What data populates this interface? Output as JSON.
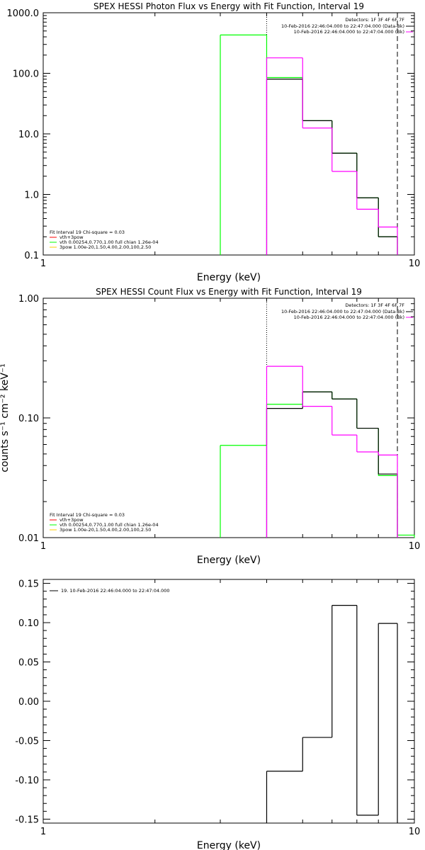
{
  "chart_data": [
    {
      "type": "line",
      "style": "step",
      "title": "SPEX HESSI Photon Flux vs Energy with Fit Function, Interval 19",
      "xlabel": "Energy (keV)",
      "ylabel": "",
      "xscale": "log",
      "yscale": "log",
      "xlim": [
        1,
        10
      ],
      "ylim": [
        0.1,
        1000
      ],
      "x_ticks": [
        "1",
        "10"
      ],
      "y_ticks": [
        "0.1",
        "1.0",
        "10.0",
        "100.0",
        "1000.0"
      ],
      "bin_edges": [
        4,
        5,
        6,
        7,
        8,
        9
      ],
      "series": [
        {
          "name": "",
          "color": "#00ff00",
          "bins": [
            [
              3.0,
              4.0,
              430
            ],
            [
              4.0,
              5.0,
              85
            ],
            [
              5.0,
              6.0,
              16.5
            ],
            [
              6.0,
              7.0,
              4.8
            ],
            [
              7.0,
              8.0,
              0.88
            ],
            [
              8.0,
              9.0,
              0.2
            ]
          ]
        },
        {
          "name": "",
          "color": "#000000",
          "bins": [
            [
              4.0,
              5.0,
              80
            ],
            [
              5.0,
              6.0,
              16.5
            ],
            [
              6.0,
              7.0,
              4.8
            ],
            [
              7.0,
              8.0,
              0.88
            ],
            [
              8.0,
              9.0,
              0.2
            ]
          ]
        },
        {
          "name": "",
          "color": "#ff00ff",
          "bins": [
            [
              4.0,
              5.0,
              180
            ],
            [
              5.0,
              6.0,
              12.5
            ],
            [
              6.0,
              7.0,
              2.4
            ],
            [
              7.0,
              8.0,
              0.57
            ],
            [
              8.0,
              9.0,
              0.29
            ]
          ]
        }
      ],
      "vlines": [
        {
          "x": 4.0,
          "style": "dotted",
          "color": "#000000"
        },
        {
          "x": 9.0,
          "style": "dashed",
          "color": "#000000"
        }
      ],
      "legend_right": {
        "header": "Detectors: 1F 3F 4F 6F 7F",
        "items": [
          {
            "text": "10-Feb-2016 22:46:04.000 to 22:47:04.000 (Data-Bk)",
            "color": "#000000"
          },
          {
            "text": "10-Feb-2016 22:46:04.000 to 22:47:04.000 (Bk)",
            "color": "#ff00ff"
          }
        ]
      },
      "legend_left": {
        "header": "Fit Interval 19    Chi-square = 0.03",
        "items": [
          {
            "text": "vth+3pow",
            "color": "#ff0000"
          },
          {
            "text": "vth 0.00254,0.770,1.00  full chian 1.26e-04",
            "color": "#00ff00"
          },
          {
            "text": "3pow 1.00e-20,1.50,4.00,2.00,100,2.50",
            "color": "#ffcc00"
          }
        ]
      }
    },
    {
      "type": "line",
      "style": "step",
      "title": "SPEX HESSI Count Flux vs Energy with Fit Function, Interval 19",
      "xlabel": "Energy (keV)",
      "ylabel": "counts s⁻¹ cm⁻² keV⁻¹",
      "xscale": "log",
      "yscale": "log",
      "xlim": [
        1,
        10
      ],
      "ylim": [
        0.01,
        1
      ],
      "x_ticks": [
        "1",
        "10"
      ],
      "y_ticks": [
        "0.01",
        "0.10",
        "1.00"
      ],
      "series": [
        {
          "name": "",
          "color": "#00ff00",
          "bins": [
            [
              3.0,
              4.0,
              0.059
            ],
            [
              4.0,
              5.0,
              0.13
            ],
            [
              5.0,
              6.0,
              0.165
            ],
            [
              6.0,
              7.0,
              0.144
            ],
            [
              7.0,
              8.0,
              0.082
            ],
            [
              8.0,
              9.0,
              0.033
            ],
            [
              9.0,
              10.0,
              0.0105
            ]
          ]
        },
        {
          "name": "",
          "color": "#000000",
          "bins": [
            [
              4.0,
              5.0,
              0.12
            ],
            [
              5.0,
              6.0,
              0.165
            ],
            [
              6.0,
              7.0,
              0.144
            ],
            [
              7.0,
              8.0,
              0.082
            ],
            [
              8.0,
              9.0,
              0.034
            ]
          ]
        },
        {
          "name": "",
          "color": "#ff00ff",
          "bins": [
            [
              4.0,
              5.0,
              0.27
            ],
            [
              5.0,
              6.0,
              0.125
            ],
            [
              6.0,
              7.0,
              0.072
            ],
            [
              7.0,
              8.0,
              0.052
            ],
            [
              8.0,
              9.0,
              0.049
            ]
          ]
        }
      ],
      "vlines": [
        {
          "x": 4.0,
          "style": "dotted",
          "color": "#000000"
        },
        {
          "x": 9.0,
          "style": "dashed",
          "color": "#000000"
        }
      ],
      "legend_right": {
        "header": "Detectors: 1F 3F 4F 6F 7F",
        "items": [
          {
            "text": "10-Feb-2016 22:46:04.000 to 22:47:04.000 (Data-Bk)",
            "color": "#000000"
          },
          {
            "text": "10-Feb-2016 22:46:04.000 to 22:47:04.000 (Bk)",
            "color": "#ff00ff"
          }
        ]
      },
      "legend_left": {
        "header": "Fit Interval 19    Chi-square = 0.03",
        "items": [
          {
            "text": "vth+3pow",
            "color": "#ff0000"
          },
          {
            "text": "vth 0.00254,0.770,1.00  full chian 1.26e-04",
            "color": "#00ff00"
          },
          {
            "text": "3pow 1.00e-20,1.50,4.00,2.00,100,2.50",
            "color": "#ffcc00"
          }
        ]
      }
    },
    {
      "type": "line",
      "style": "step",
      "title": "",
      "xlabel": "Energy (keV)",
      "ylabel": "",
      "xscale": "log",
      "yscale": "linear",
      "xlim": [
        1,
        10
      ],
      "ylim": [
        -0.155,
        0.155
      ],
      "x_ticks": [
        "1",
        "10"
      ],
      "y_ticks": [
        "-0.15",
        "-0.10",
        "-0.05",
        "0.00",
        "0.05",
        "0.10",
        "0.15"
      ],
      "series": [
        {
          "name": "",
          "color": "#000000",
          "bins": [
            [
              4.0,
              5.0,
              -0.089
            ],
            [
              5.0,
              6.0,
              -0.046
            ],
            [
              6.0,
              7.0,
              0.122
            ],
            [
              7.0,
              8.0,
              -0.145
            ],
            [
              8.0,
              9.0,
              0.099
            ]
          ]
        }
      ],
      "legend_left": {
        "header": "",
        "items": [
          {
            "text": "19. 10-Feb-2016 22:46:04.000 to 22:47:04.000",
            "color": "#000000"
          }
        ]
      }
    }
  ]
}
